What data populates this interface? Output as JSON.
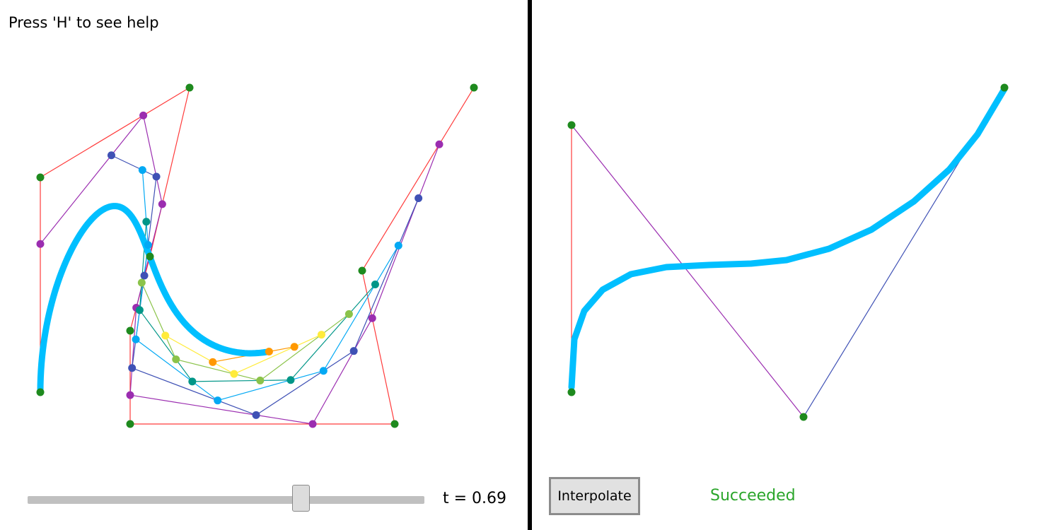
{
  "left_panel": {
    "help_text": "Press 'H' to see help",
    "t_readout": "t = 0.69",
    "slider": {
      "value": 0.69
    }
  },
  "right_panel": {
    "interpolate_label": "Interpolate",
    "status_text": "Succeeded"
  },
  "colors": {
    "curve": "#00bfff",
    "control_point": "#1e8a1e",
    "control_polygon": "#ff3b3b",
    "status_success": "#2aa52a",
    "levels": [
      "#e8413a",
      "#9b2db0",
      "#3f51b5",
      "#03a9f4",
      "#009688",
      "#8bc34a",
      "#ffeb3b",
      "#ff9800"
    ]
  }
}
